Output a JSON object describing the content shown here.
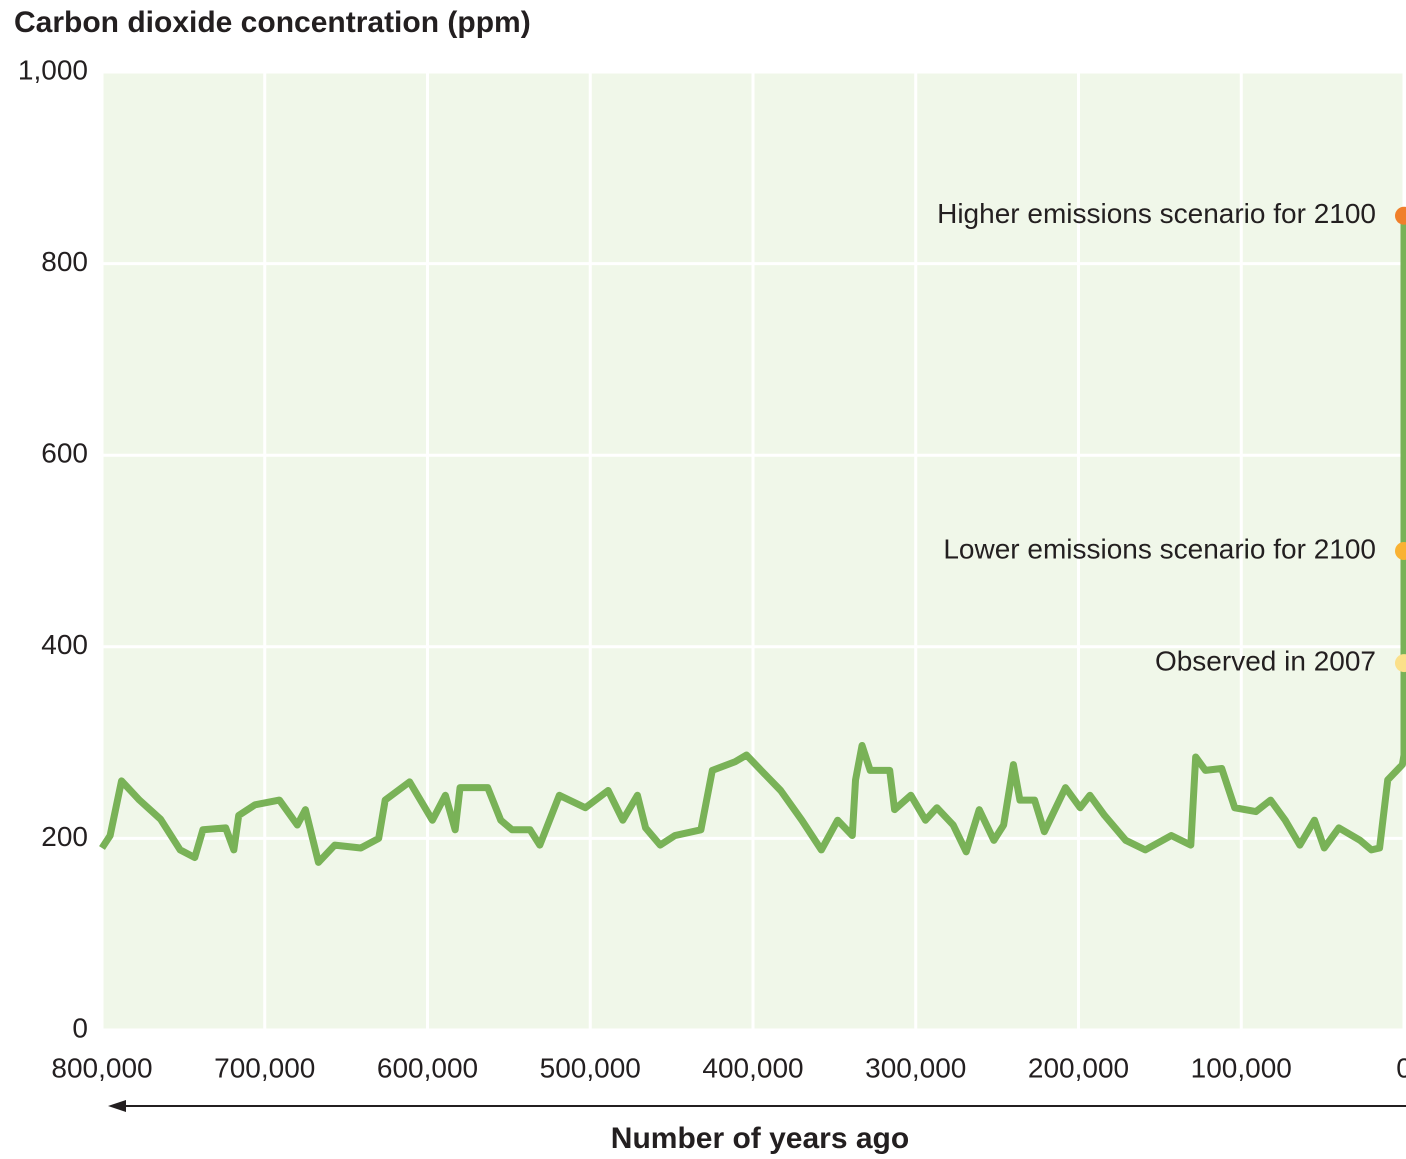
{
  "chart_data": {
    "type": "line",
    "title": "Carbon dioxide concentration (ppm)",
    "x_label": "Number of years ago",
    "xlim": [
      800000,
      0
    ],
    "ylim": [
      0,
      1000
    ],
    "xticks": [
      {
        "value": 800000,
        "label": "800,000"
      },
      {
        "value": 700000,
        "label": "700,000"
      },
      {
        "value": 600000,
        "label": "600,000"
      },
      {
        "value": 500000,
        "label": "500,000"
      },
      {
        "value": 400000,
        "label": "400,000"
      },
      {
        "value": 300000,
        "label": "300,000"
      },
      {
        "value": 200000,
        "label": "200,000"
      },
      {
        "value": 100000,
        "label": "100,000"
      },
      0
    ],
    "yticks": [
      0,
      200,
      400,
      600,
      800,
      {
        "value": 1000,
        "label": "1,000"
      }
    ],
    "grid": true,
    "background": "#f0f7e9",
    "color": "#79b257",
    "x": [
      800000,
      795000,
      788000,
      777000,
      764000,
      752000,
      743000,
      738000,
      724000,
      719000,
      716000,
      706000,
      691000,
      680000,
      675000,
      667000,
      657000,
      641000,
      630000,
      626000,
      611000,
      597000,
      589000,
      583000,
      580000,
      563000,
      555000,
      548000,
      537000,
      531000,
      519000,
      503000,
      489000,
      480000,
      471000,
      466000,
      457000,
      448000,
      432000,
      425000,
      411000,
      404000,
      395000,
      383000,
      370000,
      358000,
      348000,
      339000,
      337000,
      333000,
      328000,
      316000,
      313000,
      303000,
      294000,
      287000,
      277000,
      269000,
      261000,
      252000,
      246000,
      240000,
      236000,
      227000,
      221000,
      208000,
      199000,
      193000,
      184000,
      171000,
      159000,
      143000,
      131000,
      128000,
      122000,
      112000,
      104000,
      91000,
      82000,
      73000,
      64000,
      55000,
      49000,
      40000,
      27000,
      20000,
      15000,
      10000,
      1000,
      0,
      0
    ],
    "values": [
      190,
      203,
      260,
      240,
      220,
      188,
      180,
      209,
      211,
      188,
      224,
      235,
      240,
      214,
      230,
      175,
      193,
      190,
      200,
      240,
      259,
      219,
      245,
      209,
      253,
      253,
      219,
      209,
      209,
      193,
      245,
      232,
      250,
      219,
      245,
      211,
      193,
      203,
      209,
      271,
      280,
      287,
      271,
      250,
      219,
      188,
      219,
      203,
      261,
      297,
      271,
      271,
      230,
      245,
      219,
      232,
      214,
      186,
      230,
      198,
      214,
      277,
      240,
      240,
      207,
      253,
      232,
      245,
      224,
      198,
      188,
      203,
      193,
      285,
      271,
      273,
      232,
      228,
      240,
      219,
      193,
      219,
      190,
      211,
      198,
      188,
      190,
      261,
      277,
      287,
      850
    ],
    "annotations": [
      {
        "text": "Higher emissions scenario for 2100",
        "x": 0,
        "value": 850,
        "color": "#f07f2a"
      },
      {
        "text": "Lower emissions scenario for 2100",
        "x": 0,
        "value": 500,
        "color": "#f9b233"
      },
      {
        "text": "Observed in 2007",
        "x": 0,
        "value": 383,
        "color": "#fbe08a"
      }
    ]
  }
}
